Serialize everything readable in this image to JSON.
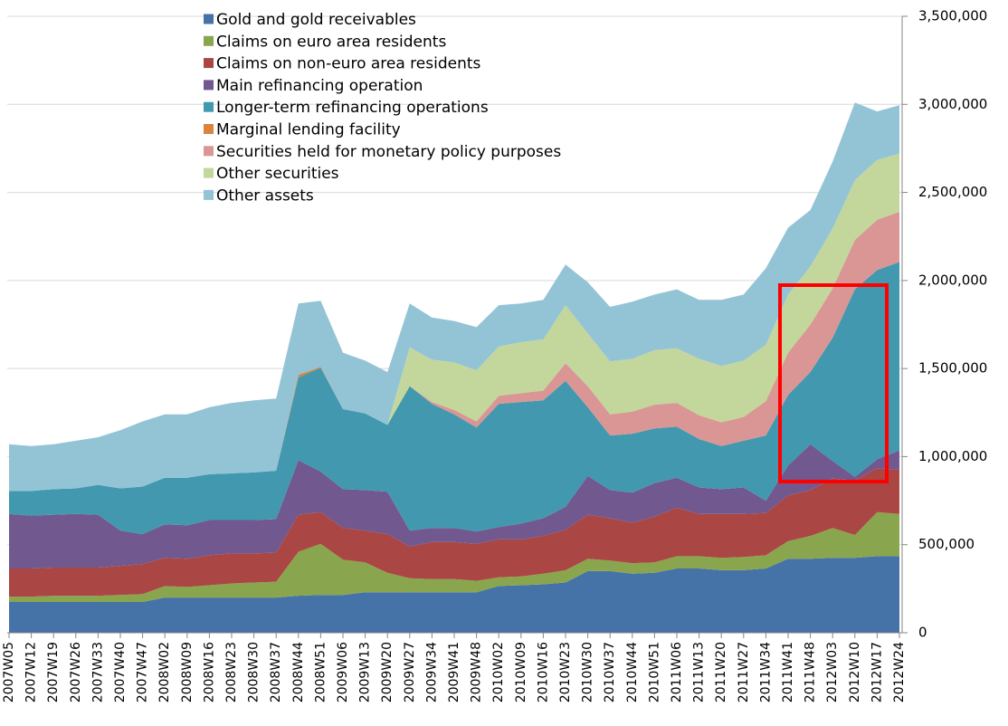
{
  "chart_data": {
    "type": "stacked_area",
    "categories": [
      "2007W05",
      "2007W12",
      "2007W19",
      "2007W26",
      "2007W33",
      "2007W40",
      "2007W47",
      "2008W02",
      "2008W09",
      "2008W16",
      "2008W23",
      "2008W30",
      "2008W37",
      "2008W44",
      "2008W51",
      "2009W06",
      "2009W13",
      "2009W20",
      "2009W27",
      "2009W34",
      "2009W41",
      "2009W48",
      "2010W02",
      "2010W09",
      "2010W16",
      "2010W23",
      "2010W30",
      "2010W37",
      "2010W44",
      "2010W51",
      "2011W06",
      "2011W13",
      "2011W20",
      "2011W27",
      "2011W34",
      "2011W41",
      "2011W48",
      "2012W03",
      "2012W10",
      "2012W17",
      "2012W24"
    ],
    "series": [
      {
        "name": "Gold and gold receivables",
        "color": "#4572a7",
        "values": [
          175000,
          175000,
          175000,
          175000,
          175000,
          175000,
          175000,
          200000,
          200000,
          200000,
          200000,
          200000,
          200000,
          210000,
          215000,
          215000,
          230000,
          230000,
          230000,
          230000,
          230000,
          230000,
          265000,
          270000,
          275000,
          285000,
          350000,
          350000,
          335000,
          340000,
          365000,
          365000,
          355000,
          355000,
          365000,
          420000,
          420000,
          425000,
          425000,
          435000,
          435000
        ]
      },
      {
        "name": "Claims on euro area residents",
        "color": "#89a54e",
        "values": [
          30000,
          30000,
          35000,
          35000,
          35000,
          40000,
          45000,
          65000,
          60000,
          70000,
          80000,
          85000,
          90000,
          250000,
          290000,
          200000,
          170000,
          110000,
          80000,
          75000,
          75000,
          65000,
          50000,
          50000,
          60000,
          70000,
          70000,
          60000,
          60000,
          60000,
          70000,
          70000,
          70000,
          75000,
          75000,
          100000,
          130000,
          170000,
          130000,
          250000,
          240000
        ]
      },
      {
        "name": "Claims on non-euro area residents",
        "color": "#aa4643",
        "values": [
          160000,
          160000,
          160000,
          160000,
          160000,
          165000,
          170000,
          160000,
          160000,
          170000,
          170000,
          165000,
          165000,
          210000,
          180000,
          180000,
          180000,
          220000,
          180000,
          210000,
          210000,
          210000,
          215000,
          210000,
          215000,
          230000,
          250000,
          240000,
          230000,
          260000,
          275000,
          240000,
          250000,
          245000,
          240000,
          260000,
          260000,
          280000,
          310000,
          250000,
          250000
        ]
      },
      {
        "name": "Main refinancing operation",
        "color": "#71588f",
        "values": [
          310000,
          300000,
          300000,
          305000,
          300000,
          200000,
          170000,
          190000,
          190000,
          200000,
          190000,
          190000,
          190000,
          310000,
          230000,
          220000,
          230000,
          240000,
          90000,
          80000,
          80000,
          70000,
          70000,
          90000,
          100000,
          130000,
          220000,
          160000,
          170000,
          190000,
          170000,
          150000,
          140000,
          150000,
          70000,
          170000,
          260000,
          100000,
          20000,
          50000,
          110000
        ]
      },
      {
        "name": "Longer-term refinancing operations",
        "color": "#4198af",
        "values": [
          130000,
          140000,
          145000,
          145000,
          170000,
          240000,
          270000,
          265000,
          270000,
          260000,
          265000,
          270000,
          275000,
          470000,
          590000,
          455000,
          435000,
          380000,
          820000,
          705000,
          645000,
          590000,
          700000,
          690000,
          670000,
          715000,
          390000,
          310000,
          335000,
          310000,
          290000,
          275000,
          245000,
          265000,
          370000,
          400000,
          410000,
          700000,
          1065000,
          1075000,
          1070000
        ]
      },
      {
        "name": "Marginal lending facility",
        "color": "#db843d",
        "values": [
          0,
          0,
          0,
          0,
          0,
          0,
          0,
          0,
          0,
          0,
          0,
          0,
          0,
          15000,
          5000,
          0,
          0,
          0,
          0,
          0,
          0,
          0,
          0,
          0,
          0,
          0,
          0,
          0,
          0,
          0,
          0,
          0,
          0,
          0,
          0,
          0,
          0,
          0,
          0,
          0,
          0
        ]
      },
      {
        "name": "Securities held for monetary policy purposes",
        "color": "#d99694",
        "values": [
          0,
          0,
          0,
          0,
          0,
          0,
          0,
          0,
          0,
          0,
          0,
          0,
          0,
          0,
          0,
          0,
          0,
          0,
          0,
          10000,
          25000,
          35000,
          45000,
          50000,
          55000,
          100000,
          120000,
          120000,
          125000,
          135000,
          135000,
          135000,
          135000,
          135000,
          195000,
          240000,
          270000,
          280000,
          280000,
          285000,
          285000
        ]
      },
      {
        "name": "Other securities",
        "color": "#c3d69b",
        "values": [
          0,
          0,
          0,
          0,
          0,
          0,
          0,
          0,
          0,
          0,
          0,
          0,
          0,
          0,
          0,
          0,
          0,
          0,
          220000,
          240000,
          270000,
          290000,
          280000,
          290000,
          290000,
          330000,
          300000,
          300000,
          300000,
          310000,
          310000,
          320000,
          320000,
          320000,
          320000,
          330000,
          330000,
          340000,
          340000,
          340000,
          330000
        ]
      },
      {
        "name": "Other assets",
        "color": "#93c4d5",
        "values": [
          265000,
          255000,
          255000,
          270000,
          270000,
          330000,
          370000,
          360000,
          360000,
          380000,
          400000,
          410000,
          410000,
          405000,
          375000,
          320000,
          300000,
          300000,
          250000,
          240000,
          235000,
          245000,
          235000,
          220000,
          225000,
          230000,
          290000,
          310000,
          325000,
          315000,
          335000,
          335000,
          375000,
          375000,
          435000,
          380000,
          320000,
          380000,
          440000,
          275000,
          275000
        ]
      }
    ],
    "ylim": [
      0,
      3500000
    ],
    "yticks": [
      0,
      {
        "value": 500000,
        "label": "500,000"
      },
      {
        "value": 1000000,
        "label": "1,000,000"
      },
      {
        "value": 1500000,
        "label": "1,500,000"
      },
      {
        "value": 2000000,
        "label": "2,000,000"
      },
      {
        "value": 2500000,
        "label": "2,500,000"
      },
      {
        "value": 3000000,
        "label": "3,000,000"
      },
      {
        "value": 3500000,
        "label": "3,500,000"
      }
    ],
    "y_axis_side": "right",
    "grid": true,
    "legend": "upper left"
  }
}
